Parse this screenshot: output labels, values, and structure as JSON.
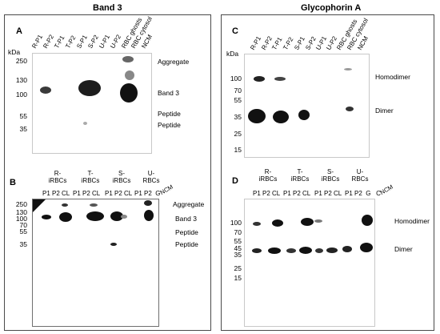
{
  "figure": {
    "left_title": "Band 3",
    "right_title": "Glycophorin A",
    "kda_label": "kDa",
    "panel_a": {
      "label": "A",
      "lanes": [
        "R-P1",
        "R-P2",
        "T-P1",
        "T-P2",
        "S-P1",
        "S-P2",
        "U-P1",
        "U-P2",
        "RBC ghosts",
        "RBC cytosol",
        "NCM"
      ],
      "markers": [
        "250",
        "130",
        "100",
        "55",
        "35"
      ],
      "right_labels": [
        "Aggregate",
        "Band 3",
        "Peptide",
        "Peptide"
      ]
    },
    "panel_b": {
      "label": "B",
      "groups": [
        "R-\niRBCs",
        "T-\niRBCs",
        "S-\niRBCs",
        "U-\nRBCs"
      ],
      "sublanes": [
        "P1 P2 CL",
        "P1 P2 CL",
        "P1 P2 CL",
        "P1 P2  G"
      ],
      "ncm": "NCM",
      "markers": [
        "250",
        "130",
        "100",
        "70",
        "55",
        "35"
      ],
      "right_labels": [
        "Aggregate",
        "Band 3",
        "Peptide",
        "Peptide"
      ]
    },
    "panel_c": {
      "label": "C",
      "lanes": [
        "R-P1",
        "R-P2",
        "T-P1",
        "T-P2",
        "S-P1",
        "S-P2",
        "U-P1",
        "U-P2",
        "RBC ghosts",
        "RBC cytosol",
        "NCM"
      ],
      "markers": [
        "100",
        "70",
        "55",
        "35",
        "25",
        "15"
      ],
      "right_labels": [
        "Homodimer",
        "Dimer"
      ]
    },
    "panel_d": {
      "label": "D",
      "groups": [
        "R-\niRBCs",
        "T-\niRBCs",
        "S-\niRBCs",
        "U-\nRBCs"
      ],
      "sublanes": [
        "P1 P2 CL",
        "P1 P2 CL",
        "P1 P2 CL",
        "P1 P2  G   C"
      ],
      "ncm": "NCM",
      "markers": [
        "100",
        "70",
        "55",
        "45",
        "35",
        "25",
        "15"
      ],
      "right_labels": [
        "Homodimer",
        "Dimer"
      ]
    }
  }
}
